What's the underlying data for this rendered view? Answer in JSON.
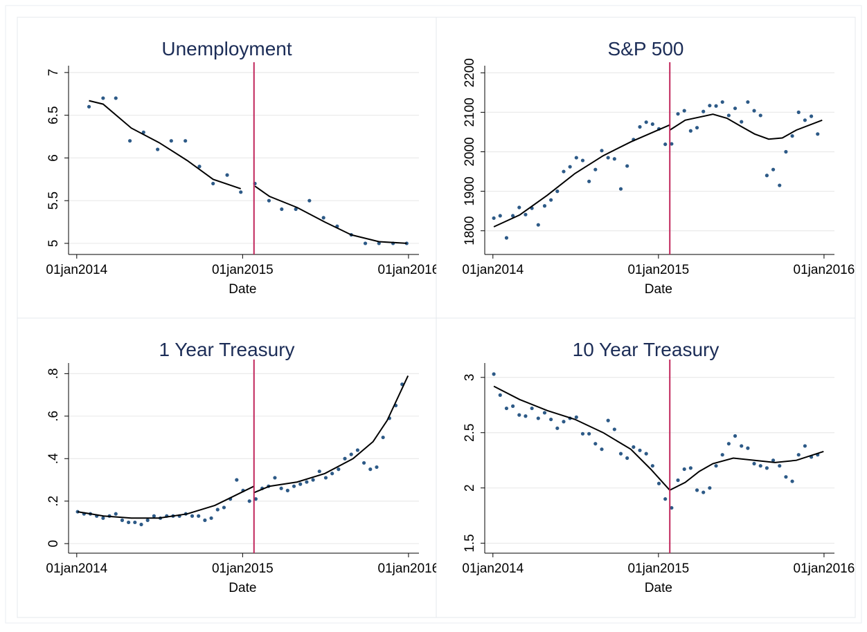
{
  "chart_data": [
    {
      "type": "scatter",
      "title": "Unemployment",
      "xlabel": "Date",
      "xlim": [
        "2013-12-14",
        "2016-01-24"
      ],
      "ylim": [
        4.87,
        7.08
      ],
      "xticks": [
        {
          "value": "2014-01-01",
          "label": "01jan2014"
        },
        {
          "value": "2015-01-01",
          "label": "01jan2015"
        },
        {
          "value": "2016-01-01",
          "label": "01jan2016"
        }
      ],
      "yticks": [
        5,
        5.5,
        6,
        6.5,
        7
      ],
      "grid": true,
      "vline": {
        "x": "2015-01-26",
        "color": "#c0245a"
      },
      "series": [
        {
          "type": "scatter",
          "color": "#2d5a87",
          "x": [
            "2014-01-28",
            "2014-02-28",
            "2014-03-28",
            "2014-04-28",
            "2014-05-28",
            "2014-06-28",
            "2014-07-28",
            "2014-08-28",
            "2014-09-28",
            "2014-10-28",
            "2014-11-28",
            "2014-12-28",
            "2015-01-28",
            "2015-02-28",
            "2015-03-28",
            "2015-04-28",
            "2015-05-28",
            "2015-06-28",
            "2015-07-28",
            "2015-08-28",
            "2015-09-28",
            "2015-10-28",
            "2015-11-28",
            "2015-12-28"
          ],
          "values": [
            6.6,
            6.7,
            6.7,
            6.2,
            6.3,
            6.1,
            6.2,
            6.2,
            5.9,
            5.7,
            5.8,
            5.6,
            5.7,
            5.5,
            5.4,
            5.4,
            5.5,
            5.3,
            5.2,
            5.1,
            5.0,
            5.0,
            5.0,
            5.0
          ]
        },
        {
          "type": "line",
          "color": "#000000",
          "x": [
            "2014-01-28",
            "2014-02-28",
            "2014-05-01",
            "2014-07-01",
            "2014-09-01",
            "2014-10-28",
            "2014-12-28",
            null,
            "2015-01-28",
            "2015-03-01",
            "2015-05-01",
            "2015-07-01",
            "2015-08-28",
            "2015-10-28",
            "2015-12-28"
          ],
          "values": [
            6.67,
            6.63,
            6.35,
            6.18,
            5.97,
            5.75,
            5.64,
            null,
            5.67,
            5.55,
            5.42,
            5.25,
            5.1,
            5.02,
            5.0
          ]
        }
      ]
    },
    {
      "type": "scatter",
      "title": "S&P 500",
      "xlabel": "Date",
      "xlim": [
        "2013-12-14",
        "2016-01-24"
      ],
      "ylim": [
        1740,
        2218
      ],
      "xticks": [
        {
          "value": "2014-01-01",
          "label": "01jan2014"
        },
        {
          "value": "2015-01-01",
          "label": "01jan2015"
        },
        {
          "value": "2016-01-01",
          "label": "01jan2016"
        }
      ],
      "yticks": [
        1800,
        1900,
        2000,
        2100,
        2200
      ],
      "grid": true,
      "vline": {
        "x": "2015-01-26",
        "color": "#c0245a"
      },
      "series": [
        {
          "type": "scatter",
          "color": "#2d5a87",
          "x": [
            "2014-01-03",
            "2014-01-17",
            "2014-01-31",
            "2014-02-14",
            "2014-02-28",
            "2014-03-14",
            "2014-03-28",
            "2014-04-11",
            "2014-04-25",
            "2014-05-09",
            "2014-05-23",
            "2014-06-06",
            "2014-06-20",
            "2014-07-04",
            "2014-07-18",
            "2014-08-01",
            "2014-08-15",
            "2014-08-29",
            "2014-09-12",
            "2014-09-26",
            "2014-10-10",
            "2014-10-24",
            "2014-11-07",
            "2014-11-21",
            "2014-12-05",
            "2014-12-19",
            "2015-01-02",
            "2015-01-16",
            "2015-01-30",
            "2015-02-13",
            "2015-02-27",
            "2015-03-13",
            "2015-03-27",
            "2015-04-10",
            "2015-04-24",
            "2015-05-08",
            "2015-05-22",
            "2015-06-05",
            "2015-06-19",
            "2015-07-03",
            "2015-07-17",
            "2015-07-31",
            "2015-08-14",
            "2015-08-28",
            "2015-09-11",
            "2015-09-25",
            "2015-10-09",
            "2015-10-23",
            "2015-11-06",
            "2015-11-20",
            "2015-12-04",
            "2015-12-18"
          ],
          "values": [
            1832,
            1838,
            1782,
            1838,
            1859,
            1841,
            1857,
            1815,
            1863,
            1878,
            1900,
            1950,
            1962,
            1985,
            1978,
            1925,
            1955,
            2003,
            1985,
            1982,
            1906,
            1964,
            2031,
            2063,
            2075,
            2070,
            2058,
            2019,
            2020,
            2096,
            2104,
            2053,
            2061,
            2102,
            2117,
            2116,
            2126,
            2092,
            2110,
            2076,
            2126,
            2104,
            2092,
            1940,
            1955,
            1915,
            2000,
            2040,
            2100,
            2080,
            2090,
            2045
          ]
        },
        {
          "type": "line",
          "color": "#000000",
          "x": [
            "2014-01-03",
            "2014-03-01",
            "2014-05-01",
            "2014-07-01",
            "2014-09-01",
            "2014-11-01",
            "2015-01-26",
            null,
            "2015-01-26",
            "2015-03-01",
            "2015-05-01",
            "2015-06-01",
            "2015-07-01",
            "2015-08-01",
            "2015-09-01",
            "2015-10-01",
            "2015-11-01",
            "2015-12-28"
          ],
          "values": [
            1810,
            1840,
            1890,
            1945,
            1990,
            2025,
            2068,
            null,
            2055,
            2080,
            2095,
            2085,
            2065,
            2045,
            2032,
            2035,
            2055,
            2080
          ]
        }
      ]
    },
    {
      "type": "scatter",
      "title": "1 Year Treasury",
      "xlabel": "Date",
      "xlim": [
        "2013-12-14",
        "2016-01-24"
      ],
      "ylim": [
        -0.045,
        0.85
      ],
      "xticks": [
        {
          "value": "2014-01-01",
          "label": "01jan2014"
        },
        {
          "value": "2015-01-01",
          "label": "01jan2015"
        },
        {
          "value": "2016-01-01",
          "label": "01jan2016"
        }
      ],
      "yticks": [
        0,
        {
          "value": 0.2,
          "label": ".2"
        },
        {
          "value": 0.4,
          "label": ".4"
        },
        {
          "value": 0.6,
          "label": ".6"
        },
        {
          "value": 0.8,
          "label": ".8"
        }
      ],
      "grid": true,
      "vline": {
        "x": "2015-01-26",
        "color": "#c0245a"
      },
      "series": [
        {
          "type": "scatter",
          "color": "#2d5a87",
          "x": [
            "2014-01-03",
            "2014-01-17",
            "2014-01-31",
            "2014-02-14",
            "2014-02-28",
            "2014-03-14",
            "2014-03-28",
            "2014-04-11",
            "2014-04-25",
            "2014-05-09",
            "2014-05-23",
            "2014-06-06",
            "2014-06-20",
            "2014-07-04",
            "2014-07-18",
            "2014-08-01",
            "2014-08-15",
            "2014-08-29",
            "2014-09-12",
            "2014-09-26",
            "2014-10-10",
            "2014-10-24",
            "2014-11-07",
            "2014-11-21",
            "2014-12-05",
            "2014-12-19",
            "2015-01-02",
            "2015-01-16",
            "2015-01-30",
            "2015-02-13",
            "2015-02-27",
            "2015-03-13",
            "2015-03-27",
            "2015-04-10",
            "2015-04-24",
            "2015-05-08",
            "2015-05-22",
            "2015-06-05",
            "2015-06-19",
            "2015-07-03",
            "2015-07-17",
            "2015-07-31",
            "2015-08-14",
            "2015-08-28",
            "2015-09-11",
            "2015-09-25",
            "2015-10-09",
            "2015-10-23",
            "2015-11-06",
            "2015-11-20",
            "2015-12-04",
            "2015-12-18"
          ],
          "values": [
            0.15,
            0.14,
            0.14,
            0.13,
            0.12,
            0.13,
            0.14,
            0.11,
            0.1,
            0.1,
            0.09,
            0.11,
            0.13,
            0.12,
            0.13,
            0.13,
            0.13,
            0.14,
            0.13,
            0.13,
            0.11,
            0.12,
            0.16,
            0.17,
            0.21,
            0.3,
            0.25,
            0.2,
            0.21,
            0.26,
            0.27,
            0.31,
            0.26,
            0.25,
            0.27,
            0.28,
            0.29,
            0.3,
            0.34,
            0.31,
            0.33,
            0.35,
            0.4,
            0.42,
            0.44,
            0.38,
            0.35,
            0.36,
            0.5,
            0.59,
            0.65,
            0.75
          ]
        },
        {
          "type": "line",
          "color": "#000000",
          "x": [
            "2014-01-03",
            "2014-03-01",
            "2014-05-01",
            "2014-07-01",
            "2014-09-01",
            "2014-11-01",
            "2015-01-26",
            null,
            "2015-01-26",
            "2015-03-01",
            "2015-05-01",
            "2015-07-01",
            "2015-09-01",
            "2015-10-15",
            "2015-11-15",
            "2015-12-31"
          ],
          "values": [
            0.15,
            0.13,
            0.12,
            0.12,
            0.14,
            0.18,
            0.27,
            null,
            0.24,
            0.27,
            0.29,
            0.33,
            0.4,
            0.48,
            0.58,
            0.79
          ]
        }
      ]
    },
    {
      "type": "scatter",
      "title": "10 Year Treasury",
      "xlabel": "Date",
      "xlim": [
        "2013-12-14",
        "2016-01-24"
      ],
      "ylim": [
        1.41,
        3.13
      ],
      "xticks": [
        {
          "value": "2014-01-01",
          "label": "01jan2014"
        },
        {
          "value": "2015-01-01",
          "label": "01jan2015"
        },
        {
          "value": "2016-01-01",
          "label": "01jan2016"
        }
      ],
      "yticks": [
        1.5,
        2,
        2.5,
        3
      ],
      "grid": true,
      "vline": {
        "x": "2015-01-26",
        "color": "#c0245a"
      },
      "series": [
        {
          "type": "scatter",
          "color": "#2d5a87",
          "x": [
            "2014-01-03",
            "2014-01-17",
            "2014-01-31",
            "2014-02-14",
            "2014-02-28",
            "2014-03-14",
            "2014-03-28",
            "2014-04-11",
            "2014-04-25",
            "2014-05-09",
            "2014-05-23",
            "2014-06-06",
            "2014-06-20",
            "2014-07-04",
            "2014-07-18",
            "2014-08-01",
            "2014-08-15",
            "2014-08-29",
            "2014-09-12",
            "2014-09-26",
            "2014-10-10",
            "2014-10-24",
            "2014-11-07",
            "2014-11-21",
            "2014-12-05",
            "2014-12-19",
            "2015-01-02",
            "2015-01-16",
            "2015-01-30",
            "2015-02-13",
            "2015-02-27",
            "2015-03-13",
            "2015-03-27",
            "2015-04-10",
            "2015-04-24",
            "2015-05-08",
            "2015-05-22",
            "2015-06-05",
            "2015-06-19",
            "2015-07-03",
            "2015-07-17",
            "2015-07-31",
            "2015-08-14",
            "2015-08-28",
            "2015-09-11",
            "2015-09-25",
            "2015-10-09",
            "2015-10-23",
            "2015-11-06",
            "2015-11-20",
            "2015-12-04",
            "2015-12-18"
          ],
          "values": [
            3.03,
            2.84,
            2.72,
            2.74,
            2.66,
            2.65,
            2.72,
            2.63,
            2.68,
            2.62,
            2.54,
            2.6,
            2.63,
            2.64,
            2.49,
            2.49,
            2.4,
            2.35,
            2.61,
            2.53,
            2.31,
            2.27,
            2.37,
            2.34,
            2.31,
            2.2,
            2.04,
            1.9,
            1.82,
            2.07,
            2.17,
            2.18,
            1.98,
            1.96,
            2.0,
            2.2,
            2.3,
            2.4,
            2.47,
            2.38,
            2.36,
            2.22,
            2.2,
            2.18,
            2.25,
            2.2,
            2.1,
            2.06,
            2.3,
            2.38,
            2.28,
            2.3
          ]
        },
        {
          "type": "line",
          "color": "#000000",
          "x": [
            "2014-01-03",
            "2014-03-01",
            "2014-05-01",
            "2014-07-01",
            "2014-09-01",
            "2014-11-01",
            "2014-12-15",
            "2015-01-26",
            null,
            "2015-01-26",
            "2015-03-01",
            "2015-04-01",
            "2015-05-01",
            "2015-06-15",
            "2015-08-01",
            "2015-09-15",
            "2015-11-01",
            "2015-12-31"
          ],
          "values": [
            2.92,
            2.8,
            2.7,
            2.62,
            2.5,
            2.35,
            2.17,
            1.98,
            null,
            1.98,
            2.05,
            2.15,
            2.22,
            2.27,
            2.25,
            2.23,
            2.25,
            2.33
          ]
        }
      ]
    }
  ]
}
